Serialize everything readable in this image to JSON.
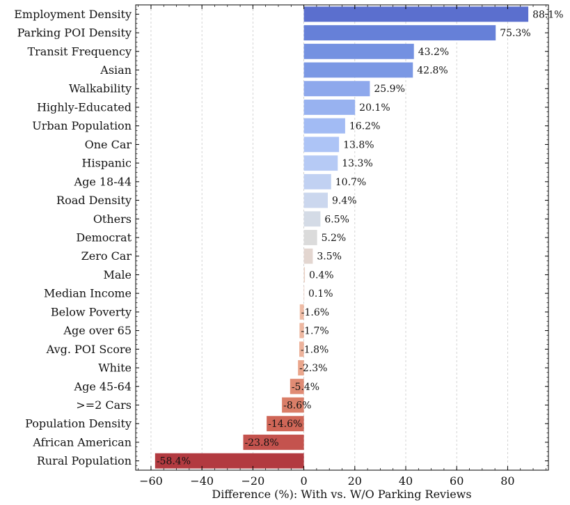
{
  "chart_data": {
    "type": "bar",
    "orientation": "horizontal",
    "xlabel": "Difference (%): With vs. W/O Parking Reviews",
    "xlim": [
      -66,
      96
    ],
    "xticks": [
      -60,
      -40,
      -20,
      0,
      20,
      40,
      60,
      80
    ],
    "xtick_labels": [
      "−60",
      "−40",
      "−20",
      "0",
      "20",
      "40",
      "60",
      "80"
    ],
    "grid": "x-dashed",
    "categories": [
      "Employment Density",
      "Parking POI Density",
      "Transit Frequency",
      "Asian",
      "Walkability",
      "Highly-Educated",
      "Urban Population",
      "One Car",
      "Hispanic",
      "Age 18-44",
      "Road Density",
      "Others",
      "Democrat",
      "Zero Car",
      "Male",
      "Median Income",
      "Below Poverty",
      "Age over 65",
      "Avg. POI Score",
      "White",
      "Age 45-64",
      ">=2 Cars",
      "Population Density",
      "African American",
      "Rural Population"
    ],
    "values": [
      88.1,
      75.3,
      43.2,
      42.8,
      25.9,
      20.1,
      16.2,
      13.8,
      13.3,
      10.7,
      9.4,
      6.5,
      5.2,
      3.5,
      0.4,
      0.1,
      -1.6,
      -1.7,
      -1.8,
      -2.3,
      -5.4,
      -8.6,
      -14.6,
      -23.8,
      -58.4
    ],
    "value_labels": [
      "88.1%",
      "75.3%",
      "43.2%",
      "42.8%",
      "25.9%",
      "20.1%",
      "16.2%",
      "13.8%",
      "13.3%",
      "10.7%",
      "9.4%",
      "6.5%",
      "5.2%",
      "3.5%",
      "0.4%",
      "0.1%",
      "-1.6%",
      "-1.7%",
      "-1.8%",
      "-2.3%",
      "-5.4%",
      "-8.6%",
      "-14.6%",
      "-23.8%",
      "-58.4%"
    ],
    "colors": [
      "#5b6fce",
      "#6680d8",
      "#7491e1",
      "#7b98e4",
      "#8ea8ec",
      "#98b2f0",
      "#a2bbf4",
      "#adc4f6",
      "#b6caf5",
      "#c1d1f2",
      "#cbd7ee",
      "#d4dbe6",
      "#dbdbdb",
      "#e3d6d0",
      "#ead0c3",
      "#ecc9ba",
      "#eebba5",
      "#eeb7a0",
      "#edb29b",
      "#eaa68c",
      "#e08b74",
      "#da7e68",
      "#cf6657",
      "#c4534e",
      "#b23a40"
    ]
  }
}
